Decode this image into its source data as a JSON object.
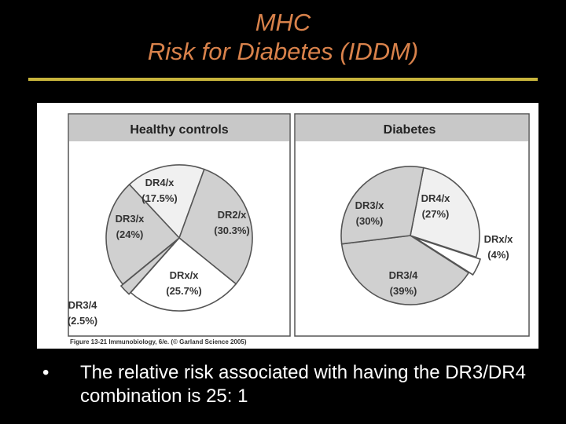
{
  "slide": {
    "title_line1": "MHC",
    "title_line2": "Risk for Diabetes (IDDM)",
    "bullet_marker": "•",
    "bullet_text": "The relative risk associated with having the DR3/DR4 combination is 25: 1"
  },
  "figure": {
    "caption": "Figure 13-21 Immunobiology, 6/e. (© Garland Science 2005)"
  },
  "colors": {
    "slide_background": "#000000",
    "title": "#d9824b",
    "rule": "#c8b43c",
    "panel_header": "#c8c8c8",
    "slice_light": "#f0f0f0",
    "slice_mid": "#d0d0d0",
    "slice_white": "#ffffff"
  },
  "chart_data": [
    {
      "type": "pie",
      "title": "Healthy controls",
      "slices": [
        {
          "label": "DR4/x",
          "value_label": "(17.5%)",
          "value": 17.5,
          "color": "#f0f0f0"
        },
        {
          "label": "DR2/x",
          "value_label": "(30.3%)",
          "value": 30.3,
          "color": "#d0d0d0"
        },
        {
          "label": "DRx/x",
          "value_label": "(25.7%)",
          "value": 25.7,
          "color": "#ffffff"
        },
        {
          "label": "DR3/4",
          "value_label": "(2.5%)",
          "value": 2.5,
          "color": "#d0d0d0"
        },
        {
          "label": "DR3/x",
          "value_label": "(24%)",
          "value": 24,
          "color": "#d0d0d0"
        }
      ]
    },
    {
      "type": "pie",
      "title": "Diabetes",
      "slices": [
        {
          "label": "DR4/x",
          "value_label": "(27%)",
          "value": 27,
          "color": "#f0f0f0"
        },
        {
          "label": "DRx/x",
          "value_label": "(4%)",
          "value": 4,
          "color": "#ffffff"
        },
        {
          "label": "DR3/4",
          "value_label": "(39%)",
          "value": 39,
          "color": "#d0d0d0"
        },
        {
          "label": "DR3/x",
          "value_label": "(30%)",
          "value": 30,
          "color": "#d0d0d0"
        }
      ]
    }
  ]
}
